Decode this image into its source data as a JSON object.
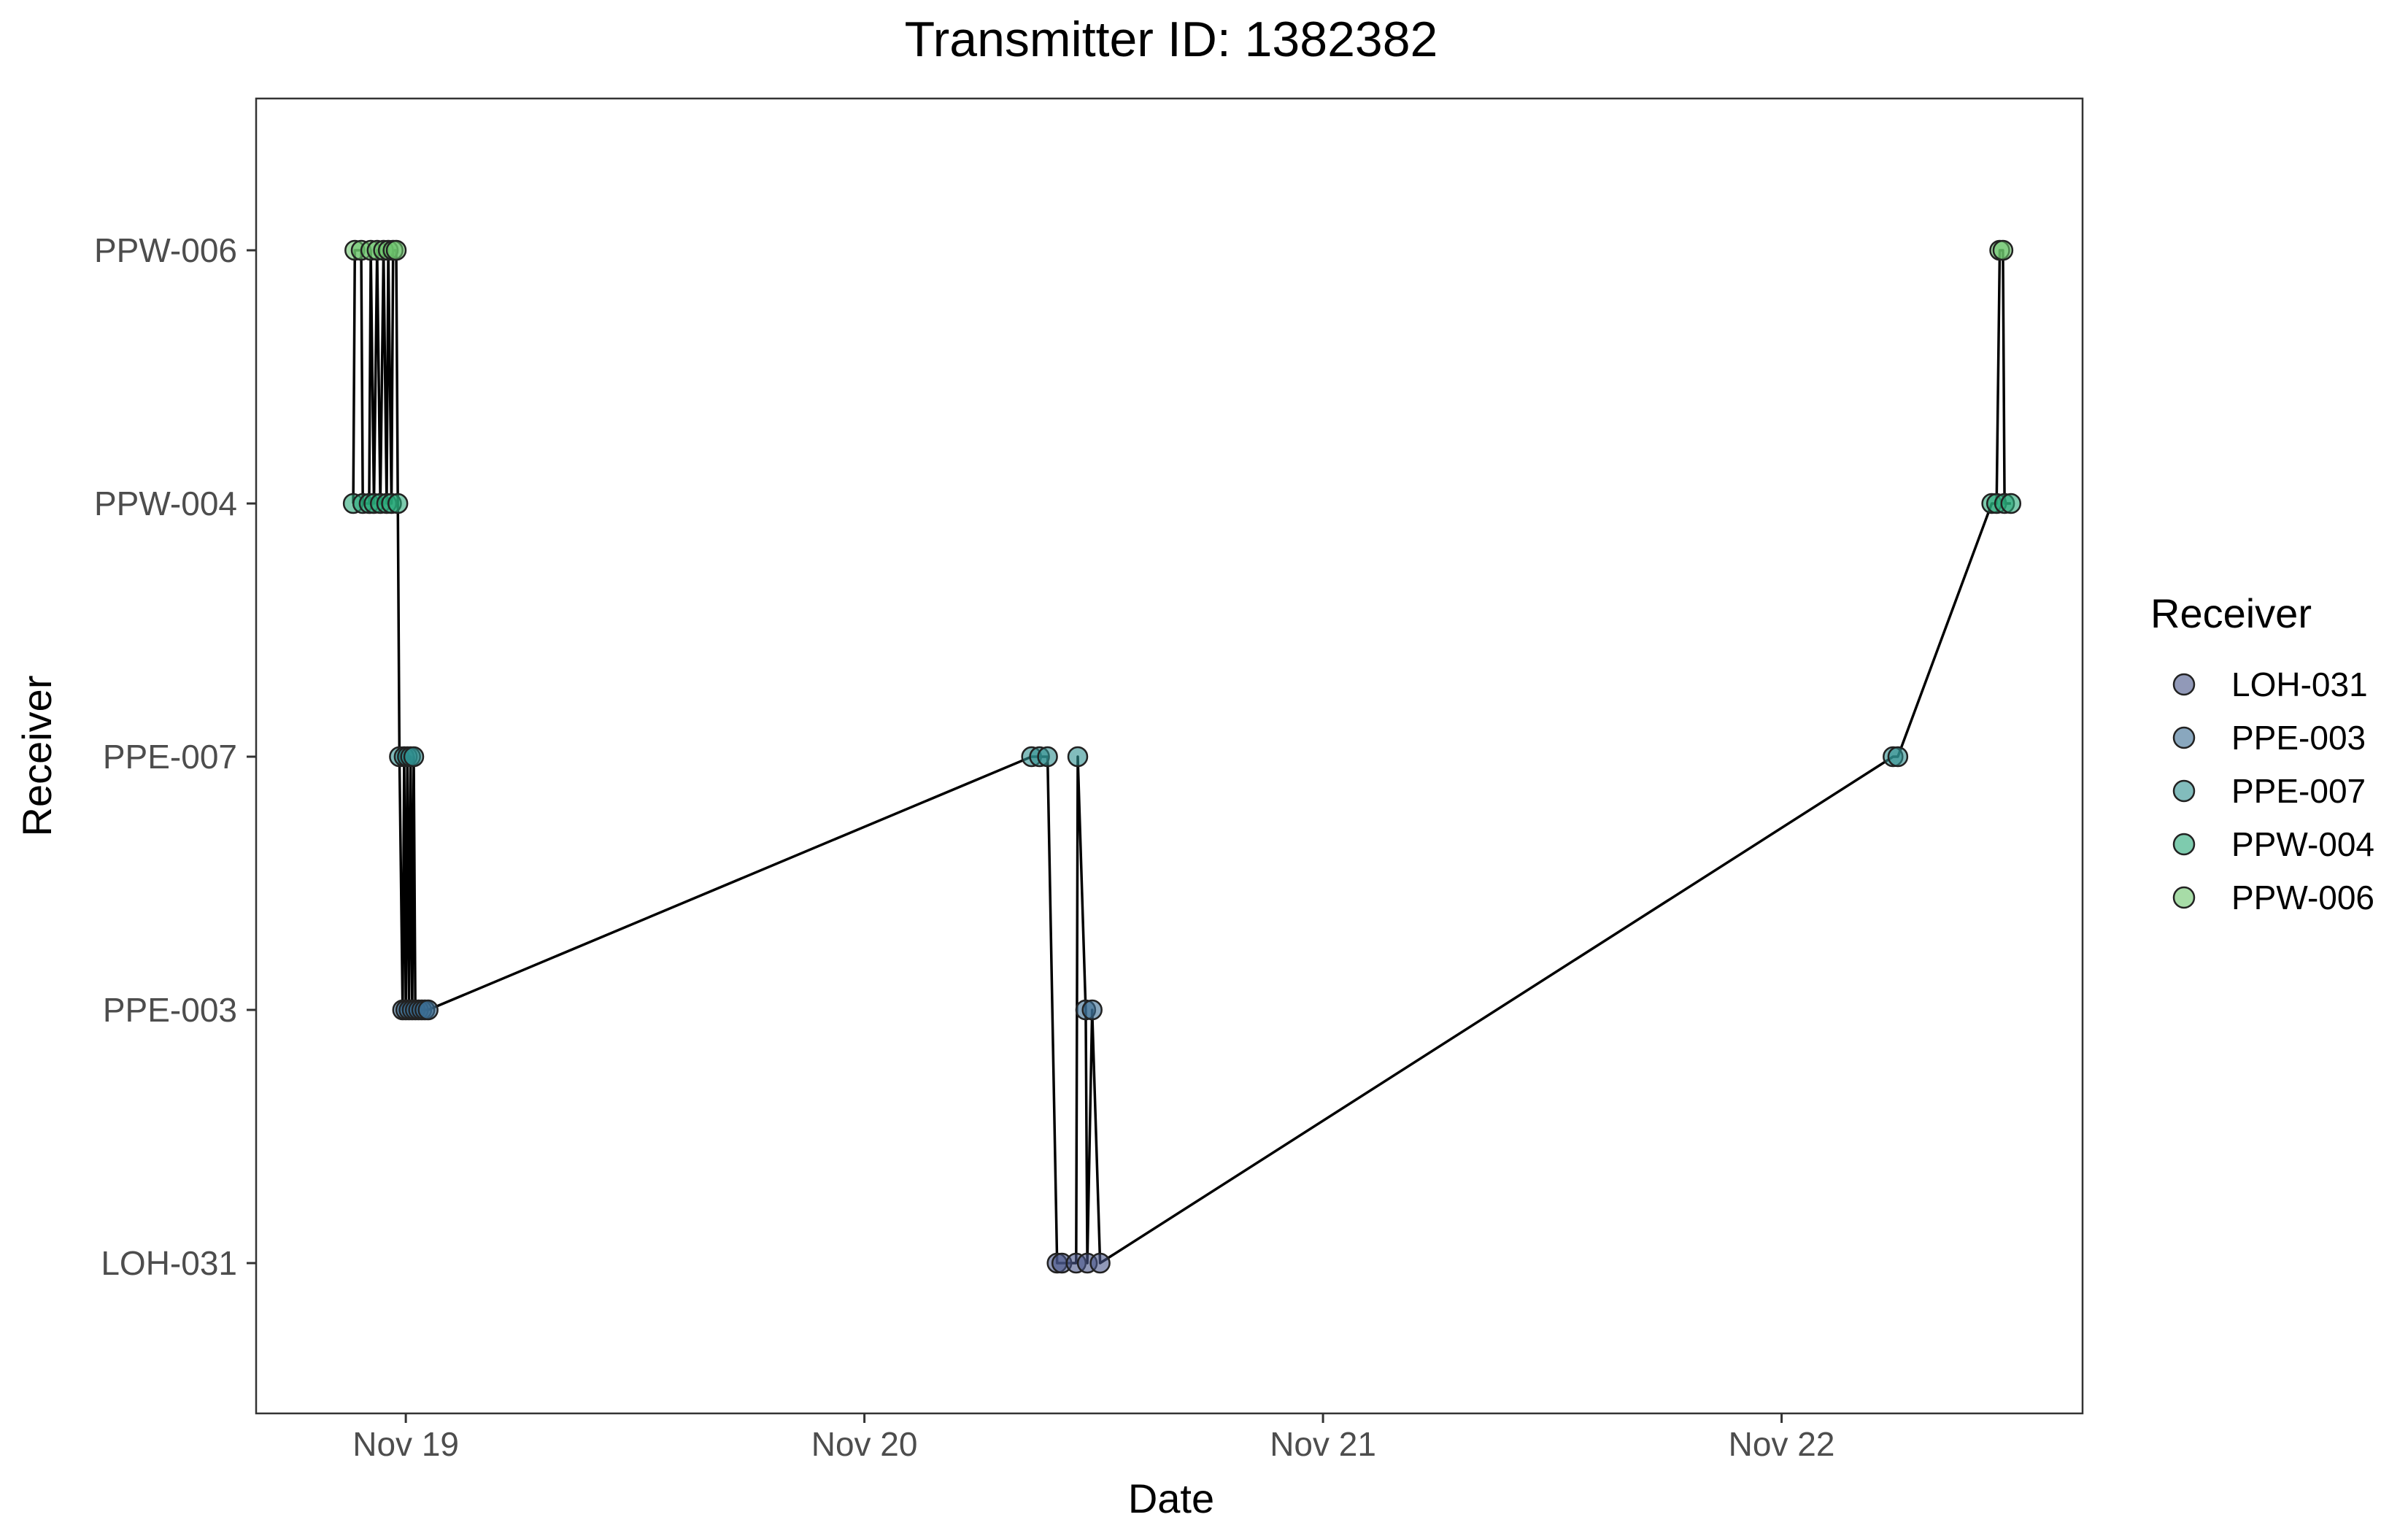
{
  "chart_data": {
    "type": "scatter",
    "connect_points": true,
    "title": "Transmitter ID: 1382382",
    "xlabel": "Date",
    "ylabel": "Receiver",
    "x_scale": "date",
    "xlim": [
      "2024-11-18 16:10",
      "2024-11-22 15:45"
    ],
    "x_ticks": [
      {
        "value": "2024-11-19 00:00",
        "label": "Nov 19"
      },
      {
        "value": "2024-11-20 00:00",
        "label": "Nov 20"
      },
      {
        "value": "2024-11-21 00:00",
        "label": "Nov 21"
      },
      {
        "value": "2024-11-22 00:00",
        "label": "Nov 22"
      }
    ],
    "categories": [
      "LOH-031",
      "PPE-003",
      "PPE-007",
      "PPW-004",
      "PPW-006"
    ],
    "grid": false,
    "legend": {
      "title": "Receiver",
      "position": "right",
      "entries": [
        {
          "label": "LOH-031",
          "color": "#475589"
        },
        {
          "label": "PPE-003",
          "color": "#3a6d93"
        },
        {
          "label": "PPE-007",
          "color": "#2e8f8f"
        },
        {
          "label": "PPW-004",
          "color": "#28a878"
        },
        {
          "label": "PPW-006",
          "color": "#6cc46d"
        }
      ]
    },
    "colors": {
      "LOH-031": "#475589",
      "PPE-003": "#3a6d93",
      "PPE-007": "#2e8f8f",
      "PPW-004": "#28a878",
      "PPW-006": "#6cc46d",
      "line": "#000000",
      "point_outline": "#222222"
    },
    "points": [
      {
        "x": "2024-11-18 21:15",
        "y": "PPW-004"
      },
      {
        "x": "2024-11-18 21:20",
        "y": "PPW-006"
      },
      {
        "x": "2024-11-18 21:40",
        "y": "PPW-006"
      },
      {
        "x": "2024-11-18 21:45",
        "y": "PPW-004"
      },
      {
        "x": "2024-11-18 22:05",
        "y": "PPW-004"
      },
      {
        "x": "2024-11-18 22:10",
        "y": "PPW-006"
      },
      {
        "x": "2024-11-18 22:20",
        "y": "PPW-004"
      },
      {
        "x": "2024-11-18 22:30",
        "y": "PPW-006"
      },
      {
        "x": "2024-11-18 22:40",
        "y": "PPW-004"
      },
      {
        "x": "2024-11-18 22:50",
        "y": "PPW-006"
      },
      {
        "x": "2024-11-18 23:00",
        "y": "PPW-004"
      },
      {
        "x": "2024-11-18 23:05",
        "y": "PPW-006"
      },
      {
        "x": "2024-11-18 23:15",
        "y": "PPW-004"
      },
      {
        "x": "2024-11-18 23:20",
        "y": "PPW-006"
      },
      {
        "x": "2024-11-18 23:30",
        "y": "PPW-006"
      },
      {
        "x": "2024-11-18 23:35",
        "y": "PPW-004"
      },
      {
        "x": "2024-11-18 23:40",
        "y": "PPE-007"
      },
      {
        "x": "2024-11-18 23:50",
        "y": "PPE-003"
      },
      {
        "x": "2024-11-18 23:55",
        "y": "PPE-007"
      },
      {
        "x": "2024-11-19 00:00",
        "y": "PPE-003"
      },
      {
        "x": "2024-11-19 00:05",
        "y": "PPE-007"
      },
      {
        "x": "2024-11-19 00:10",
        "y": "PPE-003"
      },
      {
        "x": "2024-11-19 00:15",
        "y": "PPE-007"
      },
      {
        "x": "2024-11-19 00:20",
        "y": "PPE-003"
      },
      {
        "x": "2024-11-19 00:25",
        "y": "PPE-007"
      },
      {
        "x": "2024-11-19 00:30",
        "y": "PPE-003"
      },
      {
        "x": "2024-11-19 00:40",
        "y": "PPE-003"
      },
      {
        "x": "2024-11-19 00:50",
        "y": "PPE-003"
      },
      {
        "x": "2024-11-19 01:00",
        "y": "PPE-003"
      },
      {
        "x": "2024-11-19 01:10",
        "y": "PPE-003"
      },
      {
        "x": "2024-11-20 08:45",
        "y": "PPE-007"
      },
      {
        "x": "2024-11-20 09:10",
        "y": "PPE-007"
      },
      {
        "x": "2024-11-20 09:35",
        "y": "PPE-007"
      },
      {
        "x": "2024-11-20 10:05",
        "y": "LOH-031"
      },
      {
        "x": "2024-11-20 10:20",
        "y": "LOH-031"
      },
      {
        "x": "2024-11-20 11:05",
        "y": "LOH-031"
      },
      {
        "x": "2024-11-20 11:10",
        "y": "PPE-007"
      },
      {
        "x": "2024-11-20 11:35",
        "y": "PPE-003"
      },
      {
        "x": "2024-11-20 11:40",
        "y": "LOH-031"
      },
      {
        "x": "2024-11-20 11:55",
        "y": "PPE-003"
      },
      {
        "x": "2024-11-20 12:20",
        "y": "LOH-031"
      },
      {
        "x": "2024-11-22 05:50",
        "y": "PPE-007"
      },
      {
        "x": "2024-11-22 06:05",
        "y": "PPE-007"
      },
      {
        "x": "2024-11-22 11:00",
        "y": "PPW-004"
      },
      {
        "x": "2024-11-22 11:15",
        "y": "PPW-004"
      },
      {
        "x": "2024-11-22 11:25",
        "y": "PPW-006"
      },
      {
        "x": "2024-11-22 11:35",
        "y": "PPW-006"
      },
      {
        "x": "2024-11-22 11:40",
        "y": "PPW-004"
      },
      {
        "x": "2024-11-22 12:00",
        "y": "PPW-004"
      }
    ]
  }
}
